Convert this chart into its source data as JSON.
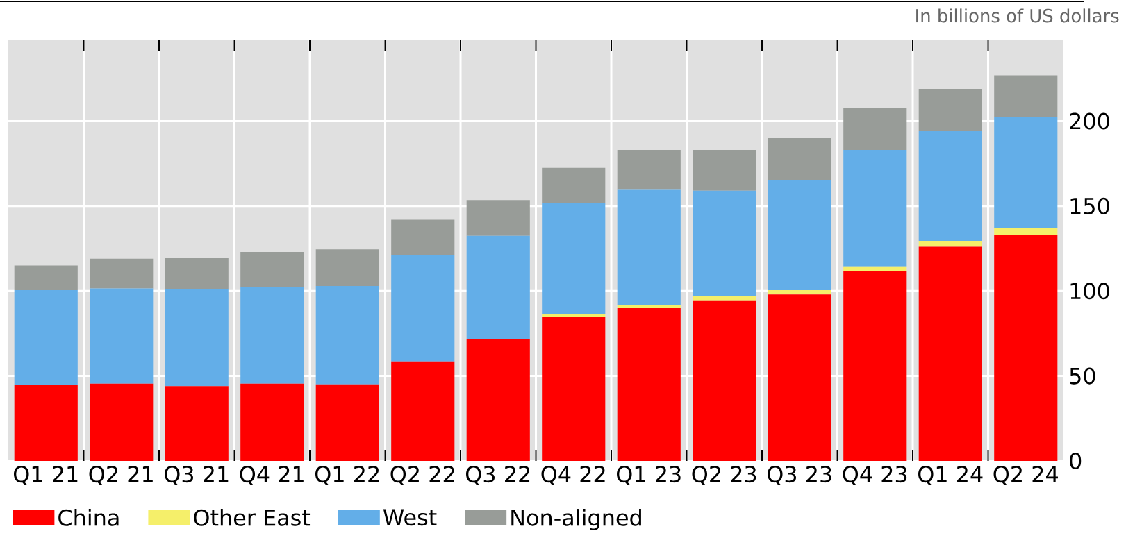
{
  "chart_data": {
    "type": "bar",
    "stacked": true,
    "annotations": [
      "In billions of US dollars"
    ],
    "categories": [
      "Q1 21",
      "Q2 21",
      "Q3 21",
      "Q4 21",
      "Q1 22",
      "Q2 22",
      "Q3 22",
      "Q4 22",
      "Q1 23",
      "Q2 23",
      "Q3 23",
      "Q4 23",
      "Q1 24",
      "Q2 24"
    ],
    "series": [
      {
        "name": "China",
        "color": "#ff0000",
        "values": [
          44.5,
          45.5,
          44,
          45.5,
          45,
          58.5,
          71.5,
          85,
          90,
          94.5,
          98,
          111.5,
          126,
          133
        ]
      },
      {
        "name": "Other East",
        "color": "#f5ef6a",
        "values": [
          0,
          0,
          0,
          0,
          0,
          0,
          0,
          1.5,
          1.5,
          2.5,
          2.5,
          3,
          3.5,
          4
        ]
      },
      {
        "name": "West",
        "color": "#63aee8",
        "values": [
          56,
          56,
          57,
          57,
          58,
          62.5,
          61,
          65.5,
          68.5,
          62,
          65,
          68.5,
          65,
          65.5
        ]
      },
      {
        "name": "Non-aligned",
        "color": "#989c98",
        "values": [
          14.5,
          17.5,
          18.5,
          20.5,
          21.5,
          21,
          21,
          20.5,
          23,
          24,
          24.5,
          25,
          24.5,
          24.5
        ]
      }
    ],
    "ylim": [
      0,
      248
    ],
    "yticks": [
      0,
      50,
      100,
      150,
      200
    ],
    "grid": true,
    "legend": "bottom"
  }
}
